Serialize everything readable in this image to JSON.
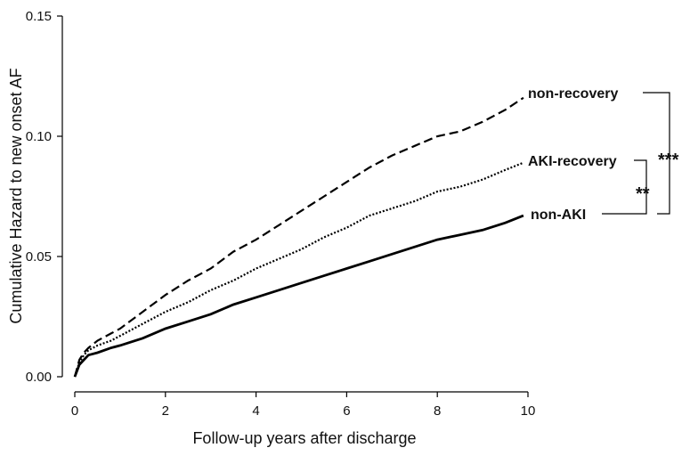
{
  "chart_data": {
    "type": "line",
    "xlabel": "Follow-up years after discharge",
    "ylabel": "Cumulative Hazard to new onset AF",
    "xlim": [
      0,
      10
    ],
    "ylim": [
      0,
      0.15
    ],
    "xticks": [
      "0",
      "2",
      "4",
      "6",
      "8",
      "10"
    ],
    "yticks": [
      "0.00",
      "0.05",
      "0.10",
      "0.15"
    ],
    "series": [
      {
        "name": "non-recovery",
        "style": "dashed",
        "x": [
          0,
          0.1,
          0.2,
          0.3,
          0.5,
          0.8,
          1,
          1.5,
          2,
          2.5,
          3,
          3.5,
          4,
          4.5,
          5,
          5.5,
          6,
          6.5,
          7,
          7.5,
          8,
          8.5,
          9,
          9.5,
          9.9
        ],
        "y": [
          0,
          0.007,
          0.01,
          0.012,
          0.015,
          0.018,
          0.02,
          0.027,
          0.034,
          0.04,
          0.045,
          0.052,
          0.057,
          0.063,
          0.069,
          0.075,
          0.081,
          0.087,
          0.092,
          0.096,
          0.1,
          0.102,
          0.106,
          0.111,
          0.116
        ]
      },
      {
        "name": "AKI-recovery",
        "style": "dotted",
        "x": [
          0,
          0.1,
          0.2,
          0.3,
          0.5,
          0.8,
          1,
          1.5,
          2,
          2.5,
          3,
          3.5,
          4,
          4.5,
          5,
          5.5,
          6,
          6.5,
          7,
          7.5,
          8,
          8.5,
          9,
          9.5,
          9.9
        ],
        "y": [
          0,
          0.006,
          0.009,
          0.011,
          0.013,
          0.015,
          0.017,
          0.022,
          0.027,
          0.031,
          0.036,
          0.04,
          0.045,
          0.049,
          0.053,
          0.058,
          0.062,
          0.067,
          0.07,
          0.073,
          0.077,
          0.079,
          0.082,
          0.086,
          0.089
        ]
      },
      {
        "name": "non-AKI",
        "style": "solid",
        "x": [
          0,
          0.1,
          0.2,
          0.3,
          0.5,
          0.8,
          1,
          1.5,
          2,
          2.5,
          3,
          3.5,
          4,
          4.5,
          5,
          5.5,
          6,
          6.5,
          7,
          7.5,
          8,
          8.5,
          9,
          9.5,
          9.9
        ],
        "y": [
          0,
          0.005,
          0.007,
          0.009,
          0.01,
          0.012,
          0.013,
          0.016,
          0.02,
          0.023,
          0.026,
          0.03,
          0.033,
          0.036,
          0.039,
          0.042,
          0.045,
          0.048,
          0.051,
          0.054,
          0.057,
          0.059,
          0.061,
          0.064,
          0.067
        ]
      }
    ],
    "annotations": [
      {
        "text": "***",
        "between": [
          "non-recovery",
          "non-AKI"
        ]
      },
      {
        "text": "**",
        "between": [
          "AKI-recovery",
          "non-AKI"
        ]
      }
    ],
    "grid": false
  }
}
